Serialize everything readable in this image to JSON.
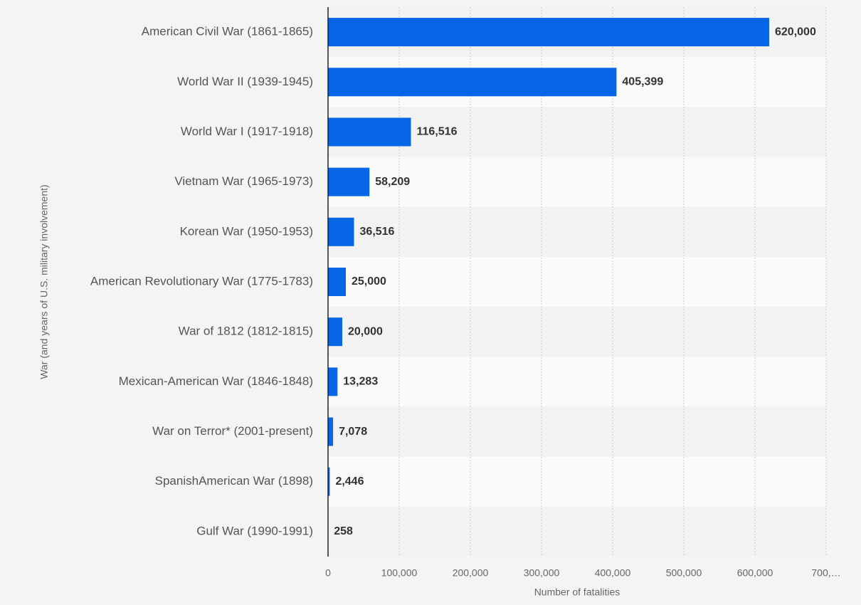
{
  "chart_data": {
    "type": "bar",
    "orientation": "horizontal",
    "x_label": "Number of fatalities",
    "y_label": "War (and years of U.S. military involvement)",
    "categories": [
      "American Civil War (1861-1865)",
      "World War II (1939-1945)",
      "World War I (1917-1918)",
      "Vietnam War (1965-1973)",
      "Korean War (1950-1953)",
      "American Revolutionary War (1775-1783)",
      "War of 1812 (1812-1815)",
      "Mexican-American War (1846-1848)",
      "War on Terror* (2001-present)",
      "SpanishAmerican War (1898)",
      "Gulf War (1990-1991)"
    ],
    "values": [
      620000,
      405399,
      116516,
      58209,
      36516,
      25000,
      20000,
      13283,
      7078,
      2446,
      258
    ],
    "value_labels": [
      "620,000",
      "405,399",
      "116,516",
      "58,209",
      "36,516",
      "25,000",
      "20,000",
      "13,283",
      "7,078",
      "2,446",
      "258"
    ],
    "color": "#0766e6",
    "xlim": [
      0,
      700000
    ],
    "xticks": [
      0,
      {
        "value": 100000,
        "label": "100,000"
      },
      {
        "value": 200000,
        "label": "200,000"
      },
      {
        "value": 300000,
        "label": "300,000"
      },
      {
        "value": 400000,
        "label": "400,000"
      },
      {
        "value": 500000,
        "label": "500,000"
      },
      {
        "value": 600000,
        "label": "600,000"
      },
      {
        "value": 700000,
        "label": "700,…"
      }
    ],
    "grid": true
  }
}
